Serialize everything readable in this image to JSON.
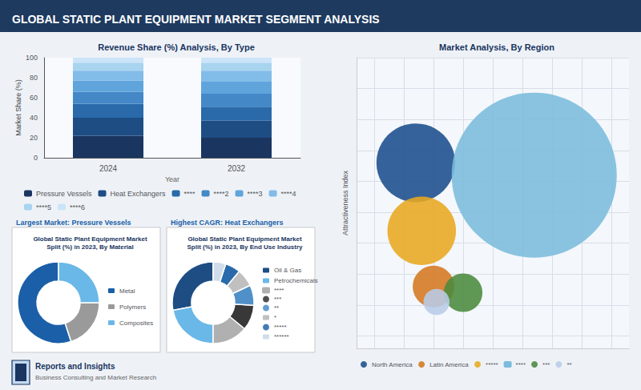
{
  "title": "GLOBAL STATIC PLANT EQUIPMENT MARKET SEGMENT ANALYSIS",
  "annotations": [
    "Reports and Insights",
    "Business Consulting and Market Research"
  ],
  "chart_data": [
    {
      "type": "bar",
      "stacked": true,
      "title": "Revenue Share (%) Analysis, By Type",
      "xlabel": "Year",
      "ylabel": "Market Share (%)",
      "categories": [
        "2024",
        "2032"
      ],
      "series": [
        {
          "name": "Pressure Vessels",
          "color": "#1a3560",
          "values": [
            22,
            20
          ]
        },
        {
          "name": "Heat Exchangers",
          "color": "#1e4d84",
          "values": [
            18,
            17
          ]
        },
        {
          "name": "****",
          "color": "#2a6aaa",
          "values": [
            14,
            14
          ]
        },
        {
          "name": "****2",
          "color": "#4488c8",
          "values": [
            12,
            13
          ]
        },
        {
          "name": "****3",
          "color": "#60a4dc",
          "values": [
            11,
            12
          ]
        },
        {
          "name": "****4",
          "color": "#82bce8",
          "values": [
            10,
            11
          ]
        },
        {
          "name": "****5",
          "color": "#a8d4f0",
          "values": [
            8,
            8
          ]
        },
        {
          "name": "****6",
          "color": "#cce4f8",
          "values": [
            5,
            5
          ]
        }
      ],
      "ylim": [
        0,
        100
      ],
      "yticks": [
        0,
        20,
        40,
        60,
        80,
        100
      ],
      "grid": false,
      "legend": "bottom"
    },
    {
      "type": "donut",
      "title": "Global Static Plant Equipment Market\nSplit (%) in 2023, By Material",
      "subtitle": "Largest Market: Pressure Vessels",
      "categories": [
        "Metal",
        "Polymers",
        "Composites"
      ],
      "values": [
        55,
        20,
        25
      ],
      "colors": [
        "#1a5fa8",
        "#9a9a9a",
        "#6ab8e8"
      ],
      "legend": "right"
    },
    {
      "type": "donut",
      "title": "Global Static Plant Equipment Market\nSplit (%) in 2023, By End Use Industry",
      "subtitle": "Highest CAGR: Heat Exchangers",
      "categories": [
        "Oil & Gas",
        "Petrochemicals",
        "****",
        "***",
        "**",
        "*",
        "*****",
        "******"
      ],
      "values": [
        28,
        22,
        14,
        10,
        8,
        7,
        6,
        5
      ],
      "colors": [
        "#1e4d84",
        "#6ab8e8",
        "#b0b0b0",
        "#383838",
        "#5090c8",
        "#c0c0c0",
        "#2a6aaa",
        "#d0dcea"
      ],
      "legend": "right"
    },
    {
      "type": "bubble",
      "title": "Market Analysis, By Region",
      "ylabel": "Attractiveness Index",
      "series": [
        {
          "name": "North America",
          "color": "#1a4d8c",
          "x": [
            2.2
          ],
          "values": [
            3.8
          ],
          "size": [
            5000
          ]
        },
        {
          "name": "Latin America",
          "color": "#d47820",
          "x": [
            2.5
          ],
          "values": [
            1.8
          ],
          "size": [
            1400
          ]
        },
        {
          "name": "*****",
          "color": "#e8a820",
          "x": [
            2.3
          ],
          "values": [
            2.7
          ],
          "size": [
            3800
          ]
        },
        {
          "name": "****",
          "color": "#7abcdc",
          "x": [
            4.2
          ],
          "values": [
            3.6
          ],
          "size": [
            22000
          ]
        },
        {
          "name": "***",
          "color": "#4a8a3c",
          "x": [
            3.0
          ],
          "values": [
            1.7
          ],
          "size": [
            1200
          ]
        },
        {
          "name": "**",
          "color": "#b8cce8",
          "x": [
            2.55
          ],
          "values": [
            1.55
          ],
          "size": [
            550
          ]
        }
      ],
      "xlim": [
        1.2,
        5.8
      ],
      "ylim": [
        0.8,
        5.5
      ],
      "xticks": [
        1.5,
        2,
        2.5,
        3,
        3.5,
        4,
        4.5,
        5,
        5.5
      ],
      "yticks": [
        1,
        1.5,
        2,
        2.5,
        3,
        3.5,
        4,
        4.5,
        5,
        5.5
      ],
      "grid": true,
      "tick_labels": false,
      "legend": "bottom"
    }
  ]
}
